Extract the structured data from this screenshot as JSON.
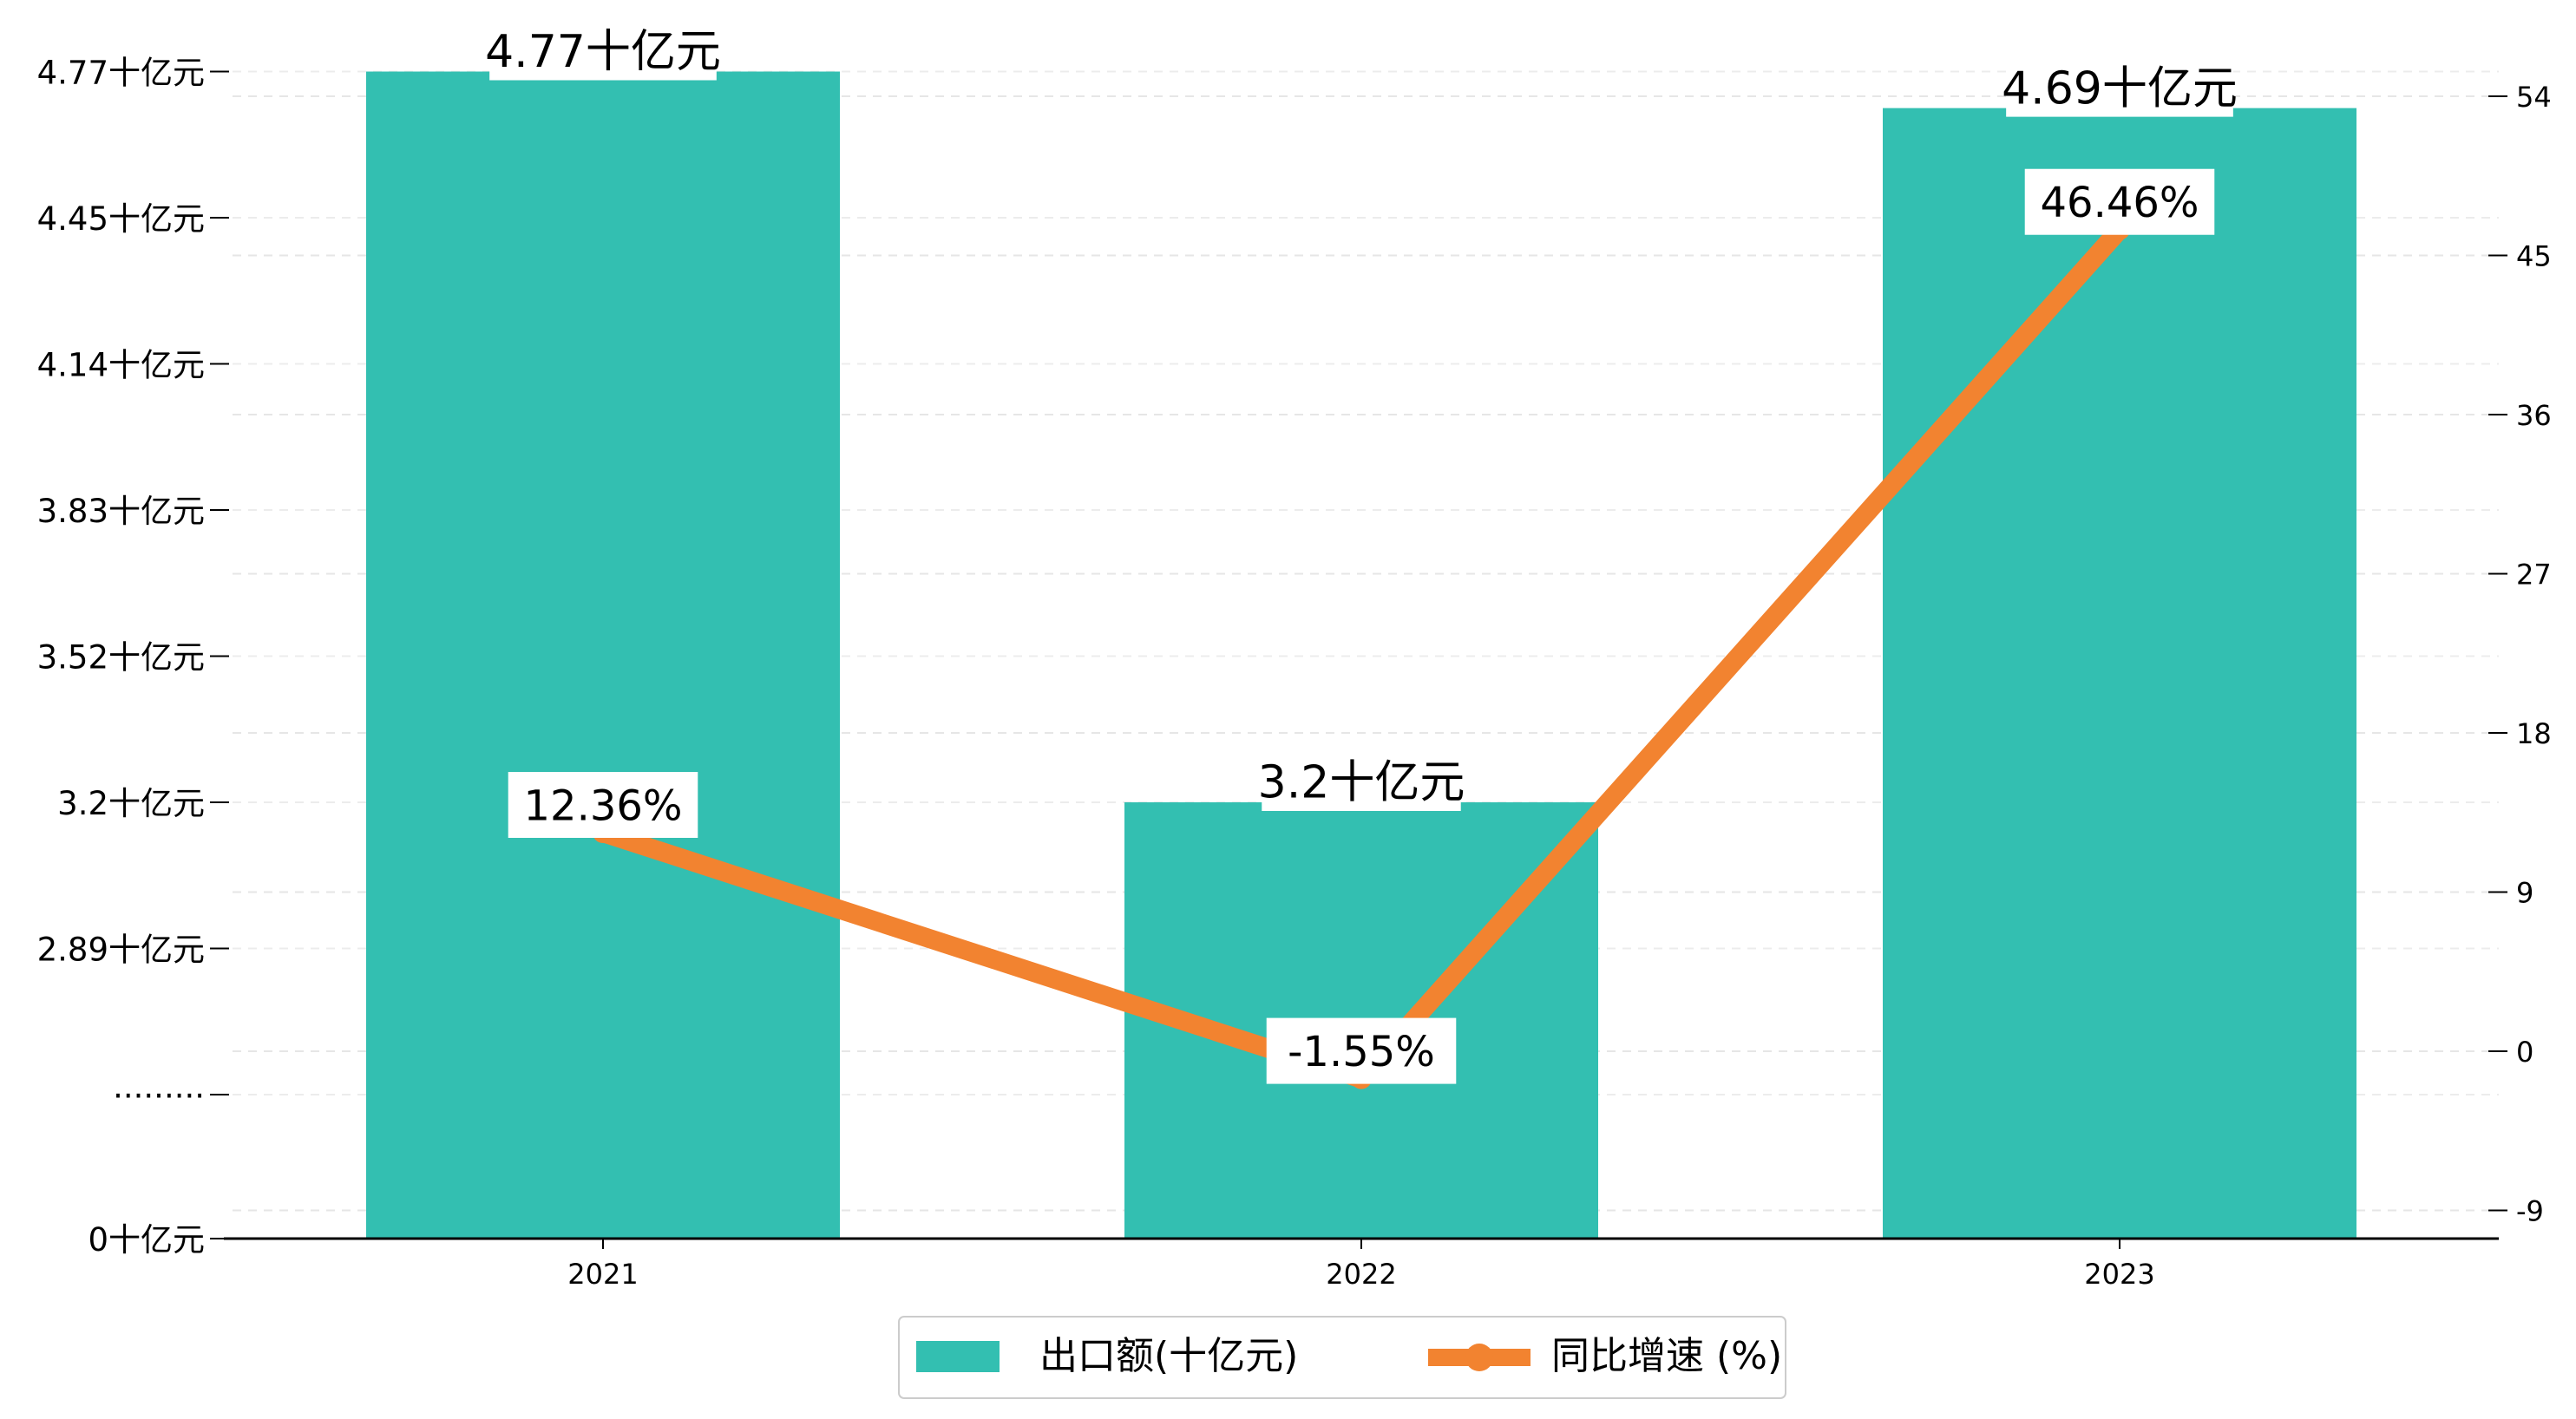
{
  "chart_data": {
    "type": "bar",
    "categories": [
      "2021",
      "2022",
      "2023"
    ],
    "series": [
      {
        "name": "出口额(十亿元)",
        "type": "bar",
        "axis": "left",
        "color": "#33bfb1",
        "values": [
          4.77,
          3.2,
          4.69
        ],
        "value_labels": [
          "4.77十亿元",
          "3.2十亿元",
          "4.69十亿元"
        ]
      },
      {
        "name": "同比增速 (%)",
        "type": "line",
        "axis": "right",
        "color": "#f28330",
        "values": [
          12.36,
          -1.55,
          46.46
        ],
        "value_labels": [
          "12.36%",
          "-1.55%",
          "46.46%"
        ]
      }
    ],
    "left_axis": {
      "ticks": [
        {
          "value": 0,
          "label": "0十亿元"
        },
        {
          "value": 2.58,
          "label": "·········"
        },
        {
          "value": 2.89,
          "label": "2.89十亿元"
        },
        {
          "value": 3.2,
          "label": "3.2十亿元"
        },
        {
          "value": 3.52,
          "label": "3.52十亿元"
        },
        {
          "value": 3.83,
          "label": "3.83十亿元"
        },
        {
          "value": 4.14,
          "label": "4.14十亿元"
        },
        {
          "value": 4.45,
          "label": "4.45十亿元"
        },
        {
          "value": 4.77,
          "label": "4.77十亿元"
        }
      ],
      "broken": true
    },
    "right_axis": {
      "ticks": [
        -9,
        0,
        9,
        18,
        27,
        36,
        45,
        54
      ],
      "ylim": [
        -10,
        56
      ]
    },
    "grid": true,
    "legend_position": "bottom-center"
  }
}
